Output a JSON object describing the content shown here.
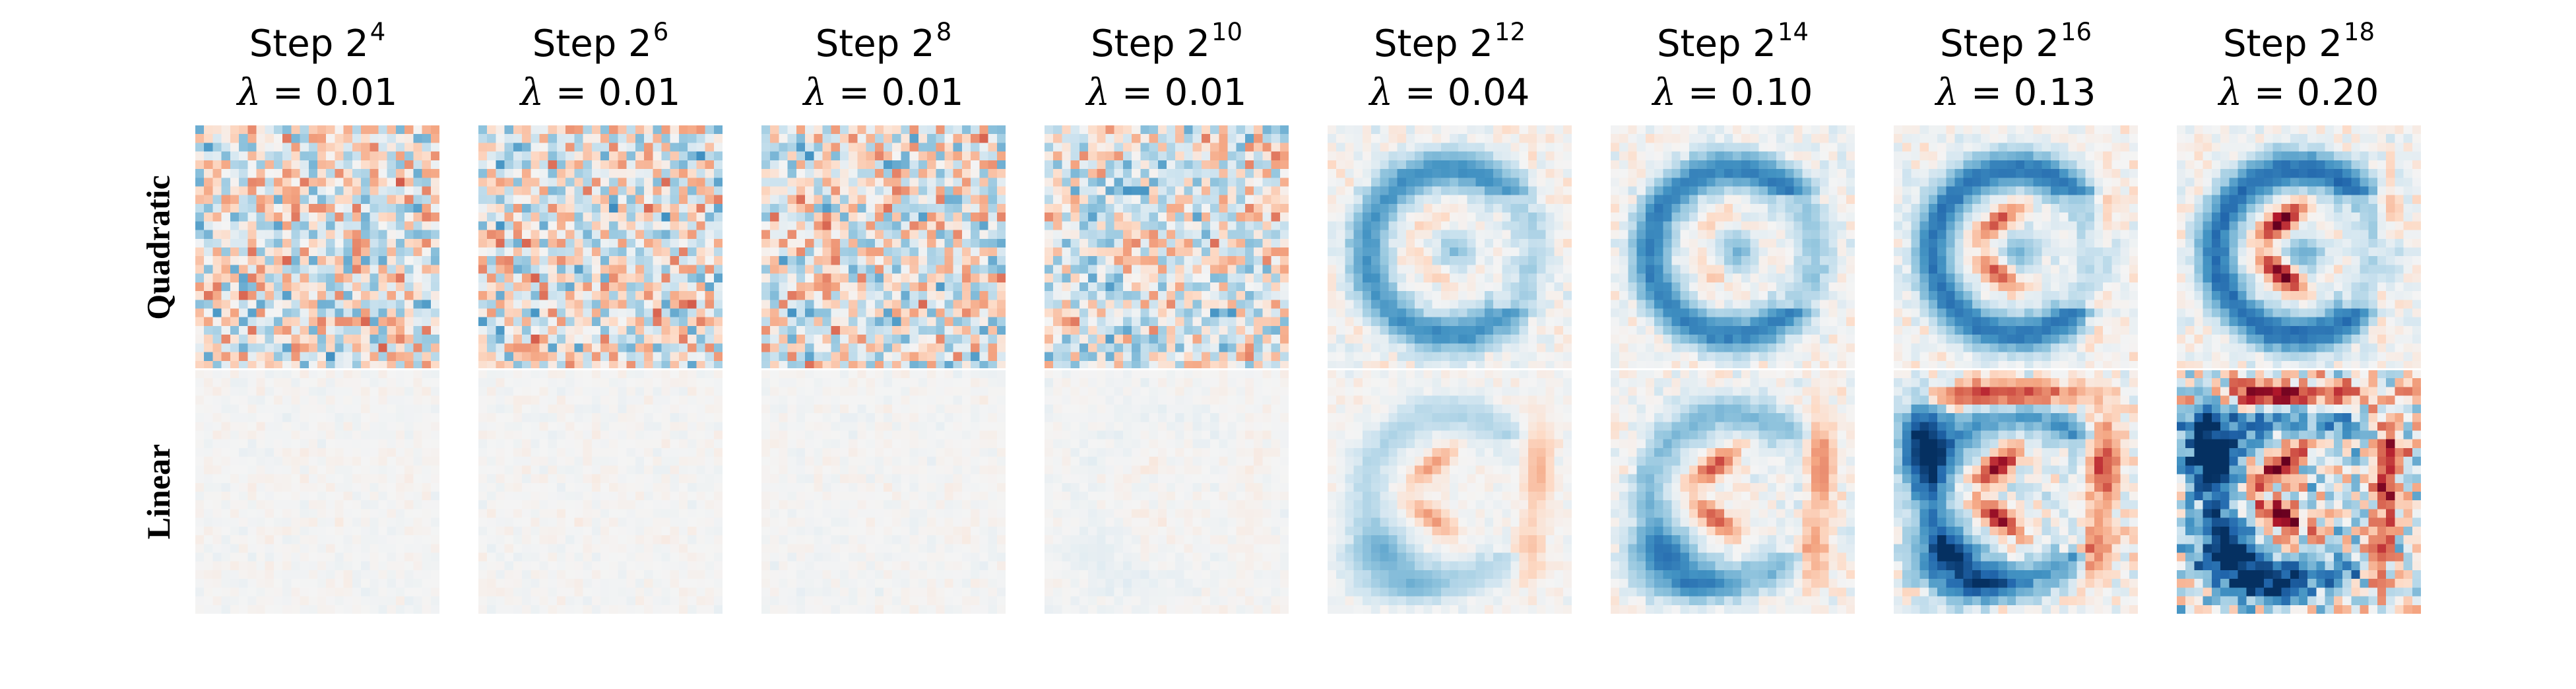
{
  "columns": [
    {
      "step_base": "Step 2",
      "step_exp": "4",
      "lambda_symbol": "λ",
      "lambda_value": "= 0.01"
    },
    {
      "step_base": "Step 2",
      "step_exp": "6",
      "lambda_symbol": "λ",
      "lambda_value": "= 0.01"
    },
    {
      "step_base": "Step 2",
      "step_exp": "8",
      "lambda_symbol": "λ",
      "lambda_value": "= 0.01"
    },
    {
      "step_base": "Step 2",
      "step_exp": "10",
      "lambda_symbol": "λ",
      "lambda_value": "= 0.01"
    },
    {
      "step_base": "Step 2",
      "step_exp": "12",
      "lambda_symbol": "λ",
      "lambda_value": "= 0.04"
    },
    {
      "step_base": "Step 2",
      "step_exp": "14",
      "lambda_symbol": "λ",
      "lambda_value": "= 0.10"
    },
    {
      "step_base": "Step 2",
      "step_exp": "16",
      "lambda_symbol": "λ",
      "lambda_value": "= 0.13"
    },
    {
      "step_base": "Step 2",
      "step_exp": "18",
      "lambda_symbol": "λ",
      "lambda_value": "= 0.20"
    }
  ],
  "rows": [
    {
      "label": "Quadratic"
    },
    {
      "label": "Linear"
    }
  ],
  "colors": {
    "negative": "#08306b",
    "neutral": "#f4f4f4",
    "positive": "#67001f",
    "tile_separator": "#ffffff"
  },
  "heatmap_grid": "28x28",
  "colormap": "RdBu_r"
}
